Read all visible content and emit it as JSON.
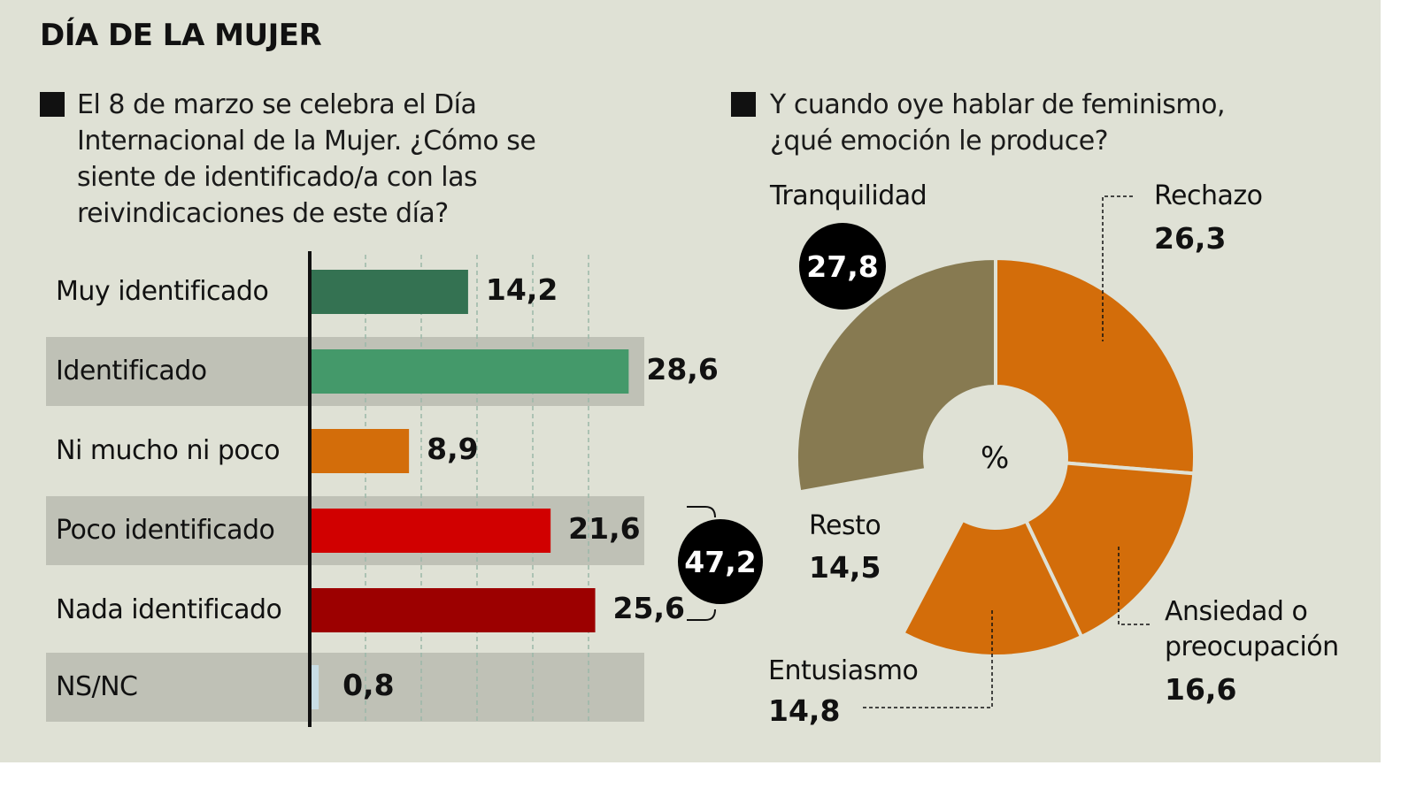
{
  "title": "DÍA DE LA MUJER",
  "chart_data": [
    {
      "type": "bar",
      "orientation": "horizontal",
      "question": "El 8 de marzo se celebra el Día Internacional de la Mujer. ¿Cómo se siente de identificado/a con las reivindicaciones de este día?",
      "question_lines": [
        "El 8 de marzo se celebra el Día",
        "Internacional de la Mujer. ¿Cómo se",
        "siente de identificado/a con las",
        "reivindicaciones de este día?"
      ],
      "categories": [
        "Muy identificado",
        "Identificado",
        "Ni mucho ni poco",
        "Poco identificado",
        "Nada identificado",
        "NS/NC"
      ],
      "values": [
        14.2,
        28.6,
        8.9,
        21.6,
        25.6,
        0.8
      ],
      "value_labels": [
        "14,2",
        "28,6",
        "8,9",
        "21,6",
        "25,6",
        "0,8"
      ],
      "colors": [
        "#347252",
        "#44996a",
        "#d36d0a",
        "#d10000",
        "#9c0000",
        "#c8dde5"
      ],
      "grid": true,
      "gridlines": [
        5,
        10,
        15,
        20,
        25
      ],
      "annotation": {
        "label": "47,2",
        "groups": [
          "Poco identificado",
          "Nada identificado"
        ]
      }
    },
    {
      "type": "pie",
      "donut": true,
      "question_lines": [
        "Y cuando oye hablar de feminismo,",
        "¿qué emoción le produce?"
      ],
      "center_label": "%",
      "slices": [
        {
          "name": "Rechazo",
          "value": 26.3,
          "label": "26,3",
          "color": "#d36d0a"
        },
        {
          "name": "Ansiedad o preocupación",
          "value": 16.6,
          "label": "16,6",
          "color": "#d36d0a"
        },
        {
          "name": "Entusiasmo",
          "value": 14.8,
          "label": "14,8",
          "color": "#d36d0a"
        },
        {
          "name": "Resto",
          "value": 14.5,
          "label": "14,5",
          "color": "none"
        },
        {
          "name": "Tranquilidad",
          "value": 27.8,
          "label": "27,8",
          "color": "#877a51"
        }
      ]
    }
  ]
}
